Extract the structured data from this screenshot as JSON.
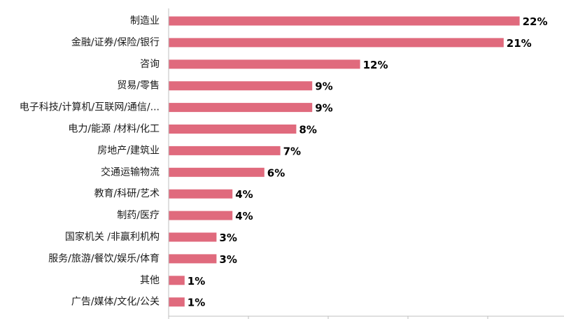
{
  "chart_data": {
    "type": "bar",
    "orientation": "horizontal",
    "categories": [
      "制造业",
      "金融/证券/保险/银行",
      "咨询",
      "贸易/零售",
      "电子科技/计算机/互联网/通信/...",
      "电力/能源 /材料/化工",
      "房地产/建筑业",
      "交通运输物流",
      "教育/科研/艺术",
      "制药/医疗",
      "国家机关 /非赢利机构",
      "服务/旅游/餐饮/娱乐/体育",
      "其他",
      "广告/媒体/文化/公关"
    ],
    "values": [
      22,
      21,
      12,
      9,
      9,
      8,
      7,
      6,
      4,
      4,
      3,
      3,
      1,
      1
    ],
    "value_labels": [
      "22%",
      "21%",
      "12%",
      "9%",
      "9%",
      "8%",
      "7%",
      "6%",
      "4%",
      "4%",
      "3%",
      "3%",
      "1%",
      "1%"
    ],
    "unit": "%",
    "xlim": [
      0,
      25
    ],
    "x_tick_step": 5,
    "grid": false,
    "legend": "none",
    "bar_color": "#e06a7d",
    "axis_color": "#bfbfbf"
  }
}
